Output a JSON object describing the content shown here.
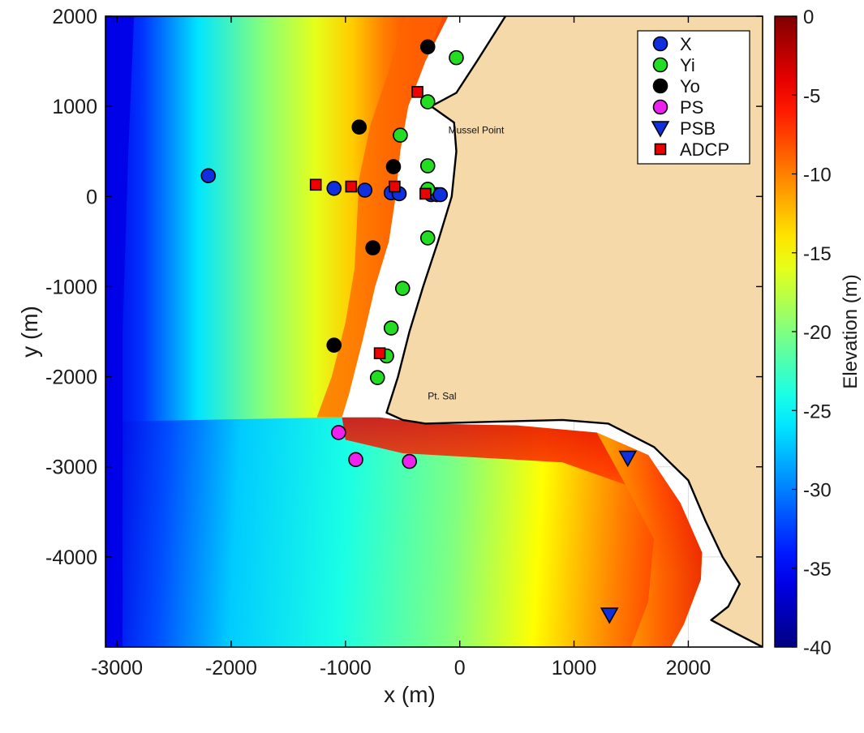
{
  "chart_data": {
    "type": "scatter",
    "title": "",
    "xlabel": "x (m)",
    "ylabel": "y (m)",
    "xlim": [
      -3100,
      2650
    ],
    "ylim": [
      -5000,
      2000
    ],
    "x_ticks": [
      -3000,
      -2000,
      -1000,
      0,
      1000,
      2000
    ],
    "y_ticks": [
      2000,
      1000,
      0,
      -1000,
      -2000,
      -3000,
      -4000
    ],
    "x_tick_labels": [
      "-3000",
      "-2000",
      "-1000",
      "0",
      "1000",
      "2000"
    ],
    "y_tick_labels": [
      "2000",
      "1000",
      "0",
      "-1000",
      "-2000",
      "-3000",
      "-4000"
    ],
    "grid": true,
    "legend_position": "top-right",
    "colorbar": {
      "label": "Elevation (m)",
      "range": [
        -40,
        0
      ],
      "ticks": [
        0,
        -5,
        -10,
        -15,
        -20,
        -25,
        -30,
        -35,
        -40
      ],
      "tick_labels": [
        "0",
        "-5",
        "-10",
        "-15",
        "-20",
        "-25",
        "-30",
        "-35",
        "-40"
      ],
      "colormap": "jet"
    },
    "annotations": [
      {
        "text": "Mussel Point",
        "x": -100,
        "y": 700
      },
      {
        "text": "Pt. Sal",
        "x": -280,
        "y": -2250
      }
    ],
    "land_color": "#f5d9a8",
    "series": [
      {
        "name": "X",
        "marker": "circle",
        "color": "#1030e0",
        "x": [
          -2200,
          -1100,
          -830,
          -600,
          -530,
          -250,
          -200,
          -170
        ],
        "y": [
          230,
          90,
          70,
          40,
          30,
          20,
          20,
          20
        ]
      },
      {
        "name": "Yi",
        "marker": "circle",
        "color": "#22dd22",
        "x": [
          -30,
          -280,
          -520,
          -280,
          -280,
          -280,
          -500,
          -600,
          -640,
          -720
        ],
        "y": [
          1540,
          1050,
          680,
          340,
          80,
          -460,
          -1020,
          -1460,
          -1770,
          -2010
        ]
      },
      {
        "name": "Yo",
        "marker": "circle",
        "color": "#000000",
        "x": [
          -280,
          -880,
          -580,
          -760,
          -1100
        ],
        "y": [
          1660,
          770,
          330,
          -570,
          -1650
        ]
      },
      {
        "name": "PS",
        "marker": "circle",
        "color": "#ee22ee",
        "x": [
          -1060,
          -910,
          -440
        ],
        "y": [
          -2620,
          -2920,
          -2940
        ]
      },
      {
        "name": "PSB",
        "marker": "triangle-down",
        "color": "#1030e0",
        "x": [
          1470,
          1310
        ],
        "y": [
          -2900,
          -4640
        ]
      },
      {
        "name": "ADCP",
        "marker": "square",
        "color": "#ee0000",
        "x": [
          -1260,
          -950,
          -570,
          -300,
          -700,
          -370
        ],
        "y": [
          130,
          110,
          110,
          30,
          -1740,
          1160
        ]
      }
    ]
  }
}
